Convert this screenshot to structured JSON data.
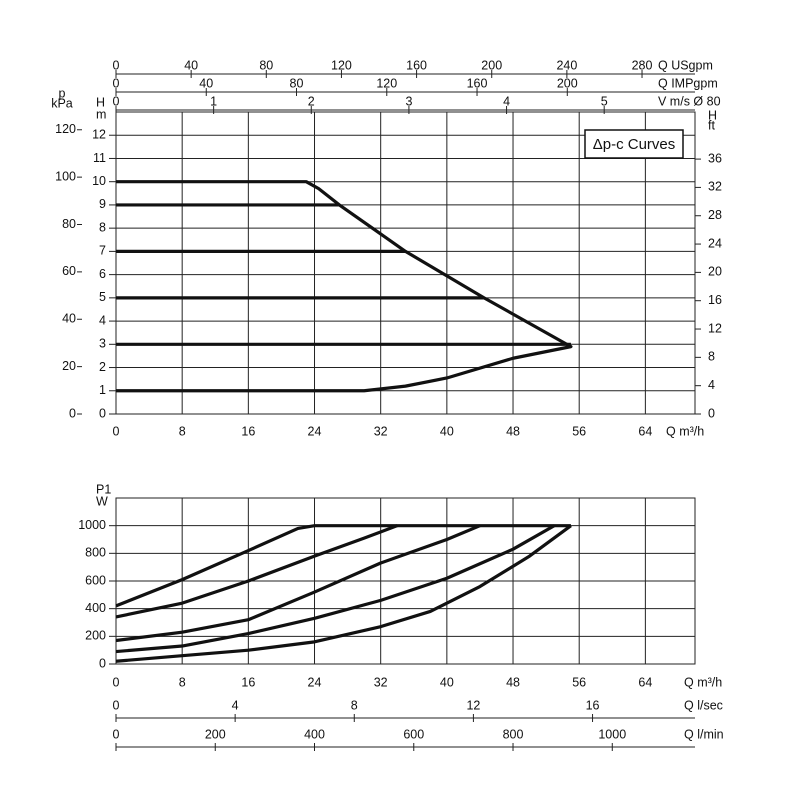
{
  "chart_data": [
    {
      "type": "line",
      "annotation": "Δp-c Curves",
      "x_label": "Q m³/h",
      "y_label": [
        "H",
        "m"
      ],
      "xlim": [
        0,
        70
      ],
      "xticks": [
        0,
        8,
        16,
        24,
        32,
        40,
        48,
        56,
        64
      ],
      "ylim": [
        0,
        13
      ],
      "yticks": [
        0,
        1,
        2,
        3,
        4,
        5,
        6,
        7,
        8,
        9,
        10,
        11,
        12
      ],
      "grid": true,
      "extra_axes": [
        {
          "side": "left",
          "label": [
            "p",
            "kPa"
          ],
          "lim": [
            0,
            127.5
          ],
          "ticks": [
            0,
            20,
            40,
            60,
            80,
            100,
            120
          ]
        },
        {
          "side": "right",
          "label": [
            "H",
            "ft"
          ],
          "lim": [
            0,
            42.65
          ],
          "ticks": [
            0,
            4,
            8,
            12,
            16,
            20,
            24,
            28,
            32,
            36
          ]
        },
        {
          "side": "top",
          "label": [
            "Q USgpm"
          ],
          "lim": [
            0,
            308.2
          ],
          "ticks": [
            0,
            40,
            80,
            120,
            160,
            200,
            240,
            280
          ]
        },
        {
          "side": "top",
          "label": [
            "Q IMPgpm"
          ],
          "lim": [
            0,
            256.6
          ],
          "ticks": [
            0,
            40,
            80,
            120,
            160,
            200
          ]
        },
        {
          "side": "top",
          "label": [
            "V m/s Ø 80"
          ],
          "lim": [
            0,
            5.93
          ],
          "ticks": [
            0,
            1,
            2,
            3,
            4,
            5
          ]
        }
      ],
      "series": [
        {
          "color": "#111111",
          "x": [
            0,
            23,
            24.5,
            27,
            35,
            44.5,
            55,
            48,
            40,
            35,
            30,
            0
          ],
          "values": [
            10,
            10,
            9.7,
            9,
            7,
            5,
            2.9,
            2.4,
            1.55,
            1.2,
            1,
            1
          ]
        },
        {
          "color": "#111111",
          "x": [
            0,
            27
          ],
          "values": [
            9,
            9
          ]
        },
        {
          "color": "#111111",
          "x": [
            0,
            35
          ],
          "values": [
            7,
            7
          ]
        },
        {
          "color": "#111111",
          "x": [
            0,
            44.5
          ],
          "values": [
            5,
            5
          ]
        },
        {
          "color": "#111111",
          "x": [
            0,
            55
          ],
          "values": [
            3,
            3
          ]
        }
      ]
    },
    {
      "type": "line",
      "x_label": "Q m³/h",
      "y_label": [
        "P1",
        "W"
      ],
      "xlim": [
        0,
        70
      ],
      "xticks": [
        0,
        8,
        16,
        24,
        32,
        40,
        48,
        56,
        64
      ],
      "ylim": [
        0,
        1200
      ],
      "yticks": [
        0,
        200,
        400,
        600,
        800,
        1000
      ],
      "grid": true,
      "extra_axes": [
        {
          "side": "bottom",
          "label": [
            "Q l/sec"
          ],
          "lim": [
            0,
            19.44
          ],
          "ticks": [
            0,
            4,
            8,
            12,
            16
          ]
        },
        {
          "side": "bottom",
          "label": [
            "Q l/min"
          ],
          "lim": [
            0,
            1166.7
          ],
          "ticks": [
            0,
            200,
            400,
            600,
            800,
            1000
          ]
        }
      ],
      "series": [
        {
          "color": "#111111",
          "x": [
            0,
            8,
            16,
            22,
            24,
            55
          ],
          "values": [
            420,
            610,
            820,
            980,
            1000,
            1000
          ]
        },
        {
          "color": "#111111",
          "x": [
            0,
            8,
            16,
            24,
            30,
            34
          ],
          "values": [
            340,
            440,
            600,
            780,
            910,
            1000
          ]
        },
        {
          "color": "#111111",
          "x": [
            0,
            8,
            16,
            24,
            32,
            40,
            44
          ],
          "values": [
            170,
            230,
            320,
            520,
            730,
            900,
            1000
          ]
        },
        {
          "color": "#111111",
          "x": [
            0,
            8,
            16,
            24,
            32,
            40,
            48,
            53
          ],
          "values": [
            90,
            130,
            220,
            330,
            460,
            620,
            830,
            1000
          ]
        },
        {
          "color": "#111111",
          "x": [
            0,
            8,
            16,
            24,
            32,
            38,
            44,
            50,
            55
          ],
          "values": [
            20,
            60,
            100,
            160,
            270,
            380,
            560,
            780,
            1000
          ]
        }
      ]
    }
  ]
}
